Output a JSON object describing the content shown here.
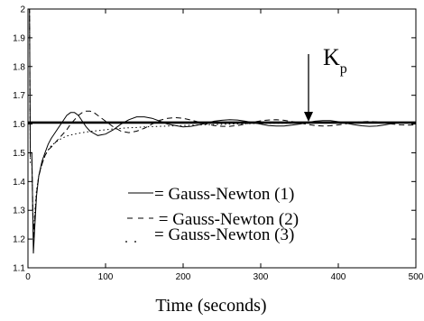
{
  "chart_data": {
    "type": "line",
    "title": "",
    "xlabel": "Time (seconds)",
    "ylabel": "",
    "xlim": [
      0,
      500
    ],
    "ylim": [
      1.1,
      2.0
    ],
    "x_ticks": [
      0,
      100,
      200,
      300,
      400,
      500
    ],
    "y_ticks": [
      1.1,
      1.2,
      1.3,
      1.4,
      1.5,
      1.6,
      1.7,
      1.8,
      1.9,
      2.0
    ],
    "x_tick_labels": [
      "0",
      "100",
      "200",
      "300",
      "400",
      "500"
    ],
    "y_tick_labels": [
      "1.1",
      "1.2",
      "1.3",
      "1.4",
      "1.5",
      "1.6",
      "1.7",
      "1.8",
      "1.9",
      "2"
    ],
    "grid": false,
    "reference_line": {
      "y": 1.605
    },
    "annotation": {
      "text": "K",
      "subscript": "p",
      "x": 362,
      "y": 1.6
    },
    "legend": [
      {
        "text": "= Gauss-Newton (1)",
        "style": "solid"
      },
      {
        "text": " = Gauss-Newton (2)",
        "style": "dashed"
      },
      {
        "text": "= Gauss-Newton (3)",
        "style": "dotted"
      }
    ],
    "series": [
      {
        "style": "solid",
        "x": [
          0,
          2,
          3,
          5,
          7,
          9,
          11,
          14,
          18,
          22,
          26,
          30,
          35,
          40,
          45,
          50,
          55,
          60,
          65,
          70,
          75,
          80,
          90,
          100,
          110,
          120,
          130,
          140,
          150,
          160,
          170,
          180,
          190,
          200,
          210,
          220,
          230,
          240,
          250,
          260,
          270,
          280,
          290,
          300,
          310,
          320,
          330,
          340,
          350,
          360,
          370,
          380,
          390,
          400,
          410,
          420,
          430,
          440,
          450,
          460,
          470,
          480,
          490,
          500
        ],
        "y": [
          2.0,
          2.0,
          1.5,
          1.5,
          1.15,
          1.25,
          1.35,
          1.42,
          1.47,
          1.5,
          1.53,
          1.55,
          1.57,
          1.59,
          1.61,
          1.63,
          1.64,
          1.64,
          1.63,
          1.61,
          1.59,
          1.575,
          1.56,
          1.565,
          1.58,
          1.6,
          1.615,
          1.625,
          1.625,
          1.62,
          1.61,
          1.6,
          1.595,
          1.59,
          1.592,
          1.597,
          1.603,
          1.61,
          1.613,
          1.615,
          1.614,
          1.61,
          1.605,
          1.6,
          1.595,
          1.593,
          1.593,
          1.596,
          1.6,
          1.605,
          1.61,
          1.612,
          1.612,
          1.608,
          1.603,
          1.598,
          1.594,
          1.592,
          1.593,
          1.597,
          1.602,
          1.606,
          1.606,
          1.604
        ]
      },
      {
        "style": "dashed",
        "x": [
          0,
          2,
          3,
          5,
          7,
          9,
          11,
          14,
          18,
          22,
          26,
          30,
          35,
          40,
          45,
          50,
          55,
          60,
          65,
          70,
          75,
          80,
          85,
          90,
          100,
          110,
          120,
          130,
          140,
          150,
          160,
          170,
          180,
          190,
          200,
          210,
          220,
          230,
          240,
          250,
          260,
          270,
          280,
          290,
          300,
          310,
          320,
          330,
          340,
          350,
          360,
          370,
          380,
          390,
          400,
          410,
          420,
          430,
          440,
          450,
          460,
          470,
          480,
          490,
          500
        ],
        "y": [
          2.0,
          2.0,
          1.48,
          1.48,
          1.2,
          1.28,
          1.36,
          1.42,
          1.46,
          1.49,
          1.51,
          1.52,
          1.535,
          1.55,
          1.565,
          1.58,
          1.6,
          1.615,
          1.63,
          1.64,
          1.645,
          1.645,
          1.64,
          1.63,
          1.61,
          1.59,
          1.575,
          1.57,
          1.575,
          1.585,
          1.6,
          1.613,
          1.62,
          1.622,
          1.62,
          1.614,
          1.607,
          1.6,
          1.595,
          1.592,
          1.592,
          1.595,
          1.6,
          1.606,
          1.611,
          1.614,
          1.615,
          1.613,
          1.609,
          1.604,
          1.599,
          1.595,
          1.593,
          1.594,
          1.597,
          1.601,
          1.605,
          1.608,
          1.609,
          1.607,
          1.604,
          1.6,
          1.597,
          1.596,
          1.597
        ]
      },
      {
        "style": "dotted",
        "x": [
          0,
          2,
          3,
          5,
          7,
          9,
          11,
          14,
          18,
          22,
          26,
          30,
          35,
          40,
          45,
          50,
          60,
          70,
          80,
          90,
          100,
          110,
          120,
          130,
          140,
          150,
          160,
          170,
          180,
          190,
          200,
          220,
          240,
          260,
          280,
          300,
          320,
          340,
          360,
          380,
          400,
          420,
          440,
          460,
          480,
          500
        ],
        "y": [
          2.0,
          2.0,
          1.46,
          1.46,
          1.22,
          1.3,
          1.37,
          1.42,
          1.46,
          1.49,
          1.51,
          1.525,
          1.535,
          1.545,
          1.552,
          1.558,
          1.565,
          1.57,
          1.574,
          1.577,
          1.58,
          1.583,
          1.585,
          1.587,
          1.588,
          1.59,
          1.591,
          1.592,
          1.593,
          1.594,
          1.595,
          1.597,
          1.598,
          1.6,
          1.601,
          1.602,
          1.603,
          1.603,
          1.604,
          1.604,
          1.605,
          1.605,
          1.605,
          1.605,
          1.605,
          1.605
        ]
      }
    ]
  }
}
